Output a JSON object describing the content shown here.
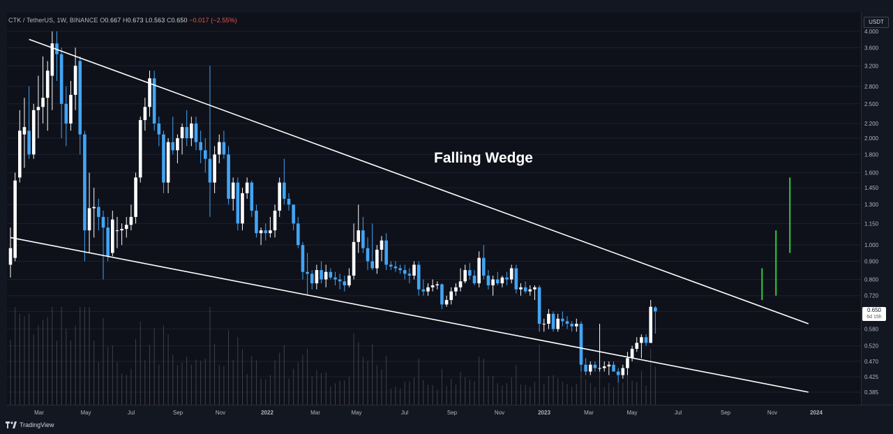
{
  "legend": {
    "symbol": "CTK / TetherUS, 1W, BINANCE",
    "o_label": "O",
    "o_value": "0.667",
    "h_label": "H",
    "h_value": "0.673",
    "l_label": "L",
    "l_value": "0.563",
    "c_label": "C",
    "c_value": "0.650",
    "change": "−0.017 (−2.55%)"
  },
  "price_scale": {
    "currency": "USDT",
    "current_price": "0.650",
    "countdown": "6d 15h"
  },
  "annotation": {
    "pattern": "Falling Wedge"
  },
  "branding": {
    "name": "TradingView"
  },
  "colors": {
    "background": "#131722",
    "bull": "#ffffff",
    "bear": "#42a5f5",
    "trendline": "#ffffff",
    "target": "#2ecc40",
    "volume": "#787b86"
  },
  "chart_data": {
    "type": "candlestick",
    "scale": "log",
    "y_ticks": [
      "4.000",
      "3.600",
      "3.200",
      "2.800",
      "2.500",
      "2.200",
      "2.000",
      "1.800",
      "1.600",
      "1.450",
      "1.300",
      "1.150",
      "1.000",
      "0.900",
      "0.800",
      "0.720",
      "0.650",
      "0.580",
      "0.520",
      "0.470",
      "0.425",
      "0.385"
    ],
    "x_ticks": [
      "Mar",
      "May",
      "Jul",
      "Sep",
      "Nov",
      "2022",
      "Mar",
      "May",
      "Jul",
      "Sep",
      "Nov",
      "2023",
      "Mar",
      "May",
      "Jul",
      "Sep",
      "Nov",
      "2024"
    ],
    "ylim": [
      0.37,
      4.1
    ],
    "candles": [
      {
        "o": 0.88,
        "h": 1.12,
        "l": 0.81,
        "c": 0.98
      },
      {
        "o": 0.92,
        "h": 1.6,
        "l": 0.9,
        "c": 1.52
      },
      {
        "o": 1.55,
        "h": 2.4,
        "l": 1.5,
        "c": 2.1
      },
      {
        "o": 2.05,
        "h": 2.6,
        "l": 1.65,
        "c": 2.15
      },
      {
        "o": 2.1,
        "h": 2.8,
        "l": 1.75,
        "c": 1.8
      },
      {
        "o": 1.8,
        "h": 2.5,
        "l": 1.75,
        "c": 2.4
      },
      {
        "o": 2.4,
        "h": 3.0,
        "l": 2.0,
        "c": 2.45
      },
      {
        "o": 2.45,
        "h": 3.4,
        "l": 2.2,
        "c": 2.6
      },
      {
        "o": 2.6,
        "h": 3.3,
        "l": 2.1,
        "c": 3.1
      },
      {
        "o": 3.0,
        "h": 4.0,
        "l": 2.4,
        "c": 3.7
      },
      {
        "o": 3.7,
        "h": 4.0,
        "l": 2.9,
        "c": 3.45
      },
      {
        "o": 3.45,
        "h": 3.6,
        "l": 2.0,
        "c": 2.5
      },
      {
        "o": 2.5,
        "h": 2.8,
        "l": 1.9,
        "c": 2.2
      },
      {
        "o": 2.2,
        "h": 2.9,
        "l": 2.1,
        "c": 2.65
      },
      {
        "o": 2.65,
        "h": 3.6,
        "l": 2.4,
        "c": 3.2
      },
      {
        "o": 3.3,
        "h": 3.4,
        "l": 1.8,
        "c": 2.05
      },
      {
        "o": 2.05,
        "h": 2.1,
        "l": 0.9,
        "c": 1.1
      },
      {
        "o": 1.1,
        "h": 1.6,
        "l": 0.95,
        "c": 1.27
      },
      {
        "o": 1.27,
        "h": 1.45,
        "l": 1.05,
        "c": 1.28
      },
      {
        "o": 1.28,
        "h": 1.35,
        "l": 1.1,
        "c": 1.2
      },
      {
        "o": 1.2,
        "h": 1.25,
        "l": 0.8,
        "c": 1.12
      },
      {
        "o": 1.12,
        "h": 1.2,
        "l": 0.9,
        "c": 0.93
      },
      {
        "o": 0.95,
        "h": 1.25,
        "l": 0.93,
        "c": 1.18
      },
      {
        "o": 1.1,
        "h": 1.2,
        "l": 0.98,
        "c": 1.1
      },
      {
        "o": 1.1,
        "h": 1.15,
        "l": 1.0,
        "c": 1.11
      },
      {
        "o": 1.11,
        "h": 1.2,
        "l": 1.05,
        "c": 1.14
      },
      {
        "o": 1.14,
        "h": 1.3,
        "l": 1.1,
        "c": 1.2
      },
      {
        "o": 1.2,
        "h": 1.6,
        "l": 1.15,
        "c": 1.55
      },
      {
        "o": 1.55,
        "h": 2.3,
        "l": 1.5,
        "c": 2.25
      },
      {
        "o": 2.25,
        "h": 2.6,
        "l": 2.1,
        "c": 2.45
      },
      {
        "o": 2.45,
        "h": 3.1,
        "l": 2.3,
        "c": 2.95
      },
      {
        "o": 2.95,
        "h": 3.1,
        "l": 2.1,
        "c": 2.2
      },
      {
        "o": 2.2,
        "h": 2.3,
        "l": 1.9,
        "c": 2.05
      },
      {
        "o": 2.05,
        "h": 2.1,
        "l": 1.4,
        "c": 1.5
      },
      {
        "o": 1.5,
        "h": 2.0,
        "l": 1.4,
        "c": 1.95
      },
      {
        "o": 1.95,
        "h": 2.3,
        "l": 1.8,
        "c": 1.85
      },
      {
        "o": 1.85,
        "h": 2.05,
        "l": 1.7,
        "c": 2.0
      },
      {
        "o": 2.0,
        "h": 2.2,
        "l": 1.8,
        "c": 2.15
      },
      {
        "o": 2.15,
        "h": 2.4,
        "l": 1.9,
        "c": 2.0
      },
      {
        "o": 2.0,
        "h": 2.3,
        "l": 1.9,
        "c": 2.2
      },
      {
        "o": 2.2,
        "h": 2.3,
        "l": 1.85,
        "c": 1.95
      },
      {
        "o": 1.95,
        "h": 2.1,
        "l": 1.7,
        "c": 1.85
      },
      {
        "o": 1.85,
        "h": 2.0,
        "l": 1.6,
        "c": 1.75
      },
      {
        "o": 1.75,
        "h": 3.2,
        "l": 1.2,
        "c": 1.5
      },
      {
        "o": 1.5,
        "h": 1.9,
        "l": 1.4,
        "c": 1.8
      },
      {
        "o": 1.8,
        "h": 2.05,
        "l": 1.7,
        "c": 1.95
      },
      {
        "o": 1.95,
        "h": 2.1,
        "l": 1.75,
        "c": 1.8
      },
      {
        "o": 1.8,
        "h": 1.9,
        "l": 1.3,
        "c": 1.35
      },
      {
        "o": 1.35,
        "h": 1.55,
        "l": 1.25,
        "c": 1.5
      },
      {
        "o": 1.5,
        "h": 1.55,
        "l": 1.1,
        "c": 1.15
      },
      {
        "o": 1.15,
        "h": 1.45,
        "l": 1.1,
        "c": 1.4
      },
      {
        "o": 1.4,
        "h": 1.55,
        "l": 1.35,
        "c": 1.5
      },
      {
        "o": 1.5,
        "h": 1.52,
        "l": 1.2,
        "c": 1.25
      },
      {
        "o": 1.25,
        "h": 1.3,
        "l": 1.05,
        "c": 1.08
      },
      {
        "o": 1.08,
        "h": 1.12,
        "l": 1.0,
        "c": 1.1
      },
      {
        "o": 1.1,
        "h": 1.15,
        "l": 1.03,
        "c": 1.08
      },
      {
        "o": 1.08,
        "h": 1.2,
        "l": 1.05,
        "c": 1.1
      },
      {
        "o": 1.1,
        "h": 1.3,
        "l": 1.05,
        "c": 1.25
      },
      {
        "o": 1.25,
        "h": 1.55,
        "l": 1.2,
        "c": 1.5
      },
      {
        "o": 1.5,
        "h": 1.75,
        "l": 1.3,
        "c": 1.35
      },
      {
        "o": 1.35,
        "h": 1.4,
        "l": 1.25,
        "c": 1.3
      },
      {
        "o": 1.3,
        "h": 1.3,
        "l": 1.1,
        "c": 1.15
      },
      {
        "o": 1.15,
        "h": 1.2,
        "l": 0.98,
        "c": 1.0
      },
      {
        "o": 1.0,
        "h": 1.02,
        "l": 0.8,
        "c": 0.84
      },
      {
        "o": 0.84,
        "h": 0.95,
        "l": 0.72,
        "c": 0.83
      },
      {
        "o": 0.83,
        "h": 0.85,
        "l": 0.75,
        "c": 0.78
      },
      {
        "o": 0.78,
        "h": 0.88,
        "l": 0.75,
        "c": 0.85
      },
      {
        "o": 0.85,
        "h": 0.9,
        "l": 0.78,
        "c": 0.8
      },
      {
        "o": 0.8,
        "h": 0.88,
        "l": 0.76,
        "c": 0.84
      },
      {
        "o": 0.84,
        "h": 0.86,
        "l": 0.8,
        "c": 0.81
      },
      {
        "o": 0.81,
        "h": 0.84,
        "l": 0.77,
        "c": 0.8
      },
      {
        "o": 0.8,
        "h": 0.83,
        "l": 0.75,
        "c": 0.79
      },
      {
        "o": 0.79,
        "h": 0.82,
        "l": 0.74,
        "c": 0.77
      },
      {
        "o": 0.77,
        "h": 0.86,
        "l": 0.76,
        "c": 0.82
      },
      {
        "o": 0.82,
        "h": 1.15,
        "l": 0.8,
        "c": 1.02
      },
      {
        "o": 1.02,
        "h": 1.3,
        "l": 0.95,
        "c": 1.1
      },
      {
        "o": 1.1,
        "h": 1.2,
        "l": 0.95,
        "c": 0.98
      },
      {
        "o": 0.98,
        "h": 1.05,
        "l": 0.85,
        "c": 0.9
      },
      {
        "o": 0.9,
        "h": 1.15,
        "l": 0.85,
        "c": 0.86
      },
      {
        "o": 0.86,
        "h": 1.0,
        "l": 0.83,
        "c": 0.97
      },
      {
        "o": 0.97,
        "h": 1.06,
        "l": 0.9,
        "c": 1.03
      },
      {
        "o": 1.03,
        "h": 1.08,
        "l": 0.85,
        "c": 0.88
      },
      {
        "o": 0.88,
        "h": 0.9,
        "l": 0.85,
        "c": 0.87
      },
      {
        "o": 0.87,
        "h": 0.9,
        "l": 0.84,
        "c": 0.86
      },
      {
        "o": 0.86,
        "h": 0.88,
        "l": 0.83,
        "c": 0.85
      },
      {
        "o": 0.85,
        "h": 0.88,
        "l": 0.8,
        "c": 0.83
      },
      {
        "o": 0.83,
        "h": 0.86,
        "l": 0.78,
        "c": 0.82
      },
      {
        "o": 0.82,
        "h": 0.9,
        "l": 0.8,
        "c": 0.88
      },
      {
        "o": 0.88,
        "h": 0.9,
        "l": 0.72,
        "c": 0.75
      },
      {
        "o": 0.75,
        "h": 0.8,
        "l": 0.72,
        "c": 0.74
      },
      {
        "o": 0.74,
        "h": 0.78,
        "l": 0.72,
        "c": 0.76
      },
      {
        "o": 0.76,
        "h": 0.8,
        "l": 0.74,
        "c": 0.77
      },
      {
        "o": 0.77,
        "h": 0.79,
        "l": 0.75,
        "c": 0.775
      },
      {
        "o": 0.775,
        "h": 0.78,
        "l": 0.66,
        "c": 0.68
      },
      {
        "o": 0.68,
        "h": 0.72,
        "l": 0.67,
        "c": 0.7
      },
      {
        "o": 0.7,
        "h": 0.76,
        "l": 0.68,
        "c": 0.74
      },
      {
        "o": 0.74,
        "h": 0.78,
        "l": 0.72,
        "c": 0.76
      },
      {
        "o": 0.76,
        "h": 0.86,
        "l": 0.74,
        "c": 0.79
      },
      {
        "o": 0.79,
        "h": 0.88,
        "l": 0.78,
        "c": 0.85
      },
      {
        "o": 0.85,
        "h": 0.89,
        "l": 0.8,
        "c": 0.82
      },
      {
        "o": 0.82,
        "h": 0.85,
        "l": 0.77,
        "c": 0.78
      },
      {
        "o": 0.78,
        "h": 0.96,
        "l": 0.76,
        "c": 0.92
      },
      {
        "o": 0.92,
        "h": 1.0,
        "l": 0.8,
        "c": 0.82
      },
      {
        "o": 0.82,
        "h": 0.85,
        "l": 0.75,
        "c": 0.77
      },
      {
        "o": 0.77,
        "h": 0.82,
        "l": 0.72,
        "c": 0.8
      },
      {
        "o": 0.8,
        "h": 0.84,
        "l": 0.77,
        "c": 0.78
      },
      {
        "o": 0.78,
        "h": 0.82,
        "l": 0.76,
        "c": 0.81
      },
      {
        "o": 0.81,
        "h": 0.84,
        "l": 0.77,
        "c": 0.8
      },
      {
        "o": 0.8,
        "h": 0.88,
        "l": 0.78,
        "c": 0.86
      },
      {
        "o": 0.86,
        "h": 0.88,
        "l": 0.73,
        "c": 0.75
      },
      {
        "o": 0.75,
        "h": 0.78,
        "l": 0.72,
        "c": 0.76
      },
      {
        "o": 0.76,
        "h": 0.79,
        "l": 0.73,
        "c": 0.74
      },
      {
        "o": 0.74,
        "h": 0.77,
        "l": 0.72,
        "c": 0.75
      },
      {
        "o": 0.75,
        "h": 0.77,
        "l": 0.7,
        "c": 0.76
      },
      {
        "o": 0.76,
        "h": 0.77,
        "l": 0.57,
        "c": 0.6
      },
      {
        "o": 0.6,
        "h": 0.62,
        "l": 0.57,
        "c": 0.6
      },
      {
        "o": 0.6,
        "h": 0.66,
        "l": 0.58,
        "c": 0.64
      },
      {
        "o": 0.64,
        "h": 0.65,
        "l": 0.57,
        "c": 0.58
      },
      {
        "o": 0.58,
        "h": 0.64,
        "l": 0.57,
        "c": 0.62
      },
      {
        "o": 0.62,
        "h": 0.65,
        "l": 0.59,
        "c": 0.61
      },
      {
        "o": 0.61,
        "h": 0.63,
        "l": 0.58,
        "c": 0.6
      },
      {
        "o": 0.6,
        "h": 0.61,
        "l": 0.57,
        "c": 0.59
      },
      {
        "o": 0.59,
        "h": 0.62,
        "l": 0.57,
        "c": 0.6
      },
      {
        "o": 0.6,
        "h": 0.61,
        "l": 0.44,
        "c": 0.46
      },
      {
        "o": 0.46,
        "h": 0.48,
        "l": 0.43,
        "c": 0.44
      },
      {
        "o": 0.44,
        "h": 0.47,
        "l": 0.43,
        "c": 0.46
      },
      {
        "o": 0.46,
        "h": 0.47,
        "l": 0.44,
        "c": 0.45
      },
      {
        "o": 0.45,
        "h": 0.6,
        "l": 0.44,
        "c": 0.45
      },
      {
        "o": 0.45,
        "h": 0.47,
        "l": 0.44,
        "c": 0.455
      },
      {
        "o": 0.455,
        "h": 0.47,
        "l": 0.43,
        "c": 0.46
      },
      {
        "o": 0.46,
        "h": 0.47,
        "l": 0.44,
        "c": 0.44
      },
      {
        "o": 0.44,
        "h": 0.45,
        "l": 0.41,
        "c": 0.43
      },
      {
        "o": 0.43,
        "h": 0.46,
        "l": 0.42,
        "c": 0.45
      },
      {
        "o": 0.45,
        "h": 0.5,
        "l": 0.43,
        "c": 0.48
      },
      {
        "o": 0.48,
        "h": 0.52,
        "l": 0.47,
        "c": 0.51
      },
      {
        "o": 0.51,
        "h": 0.55,
        "l": 0.5,
        "c": 0.53
      },
      {
        "o": 0.53,
        "h": 0.56,
        "l": 0.48,
        "c": 0.55
      },
      {
        "o": 0.55,
        "h": 0.56,
        "l": 0.52,
        "c": 0.53
      },
      {
        "o": 0.53,
        "h": 0.7,
        "l": 0.53,
        "c": 0.67
      },
      {
        "o": 0.667,
        "h": 0.673,
        "l": 0.563,
        "c": 0.65
      }
    ],
    "trendlines": [
      {
        "name": "upper",
        "from": {
          "i": 4,
          "price": 3.8
        },
        "to": {
          "i": 172,
          "price": 0.6
        }
      },
      {
        "name": "lower",
        "from": {
          "i": 0,
          "price": 1.05
        },
        "to": {
          "i": 172,
          "price": 0.385
        }
      }
    ],
    "targets": [
      {
        "i": 162,
        "low": 0.7,
        "high": 0.86
      },
      {
        "i": 165,
        "low": 0.72,
        "high": 1.1
      },
      {
        "i": 168,
        "low": 0.95,
        "high": 1.55
      }
    ]
  }
}
